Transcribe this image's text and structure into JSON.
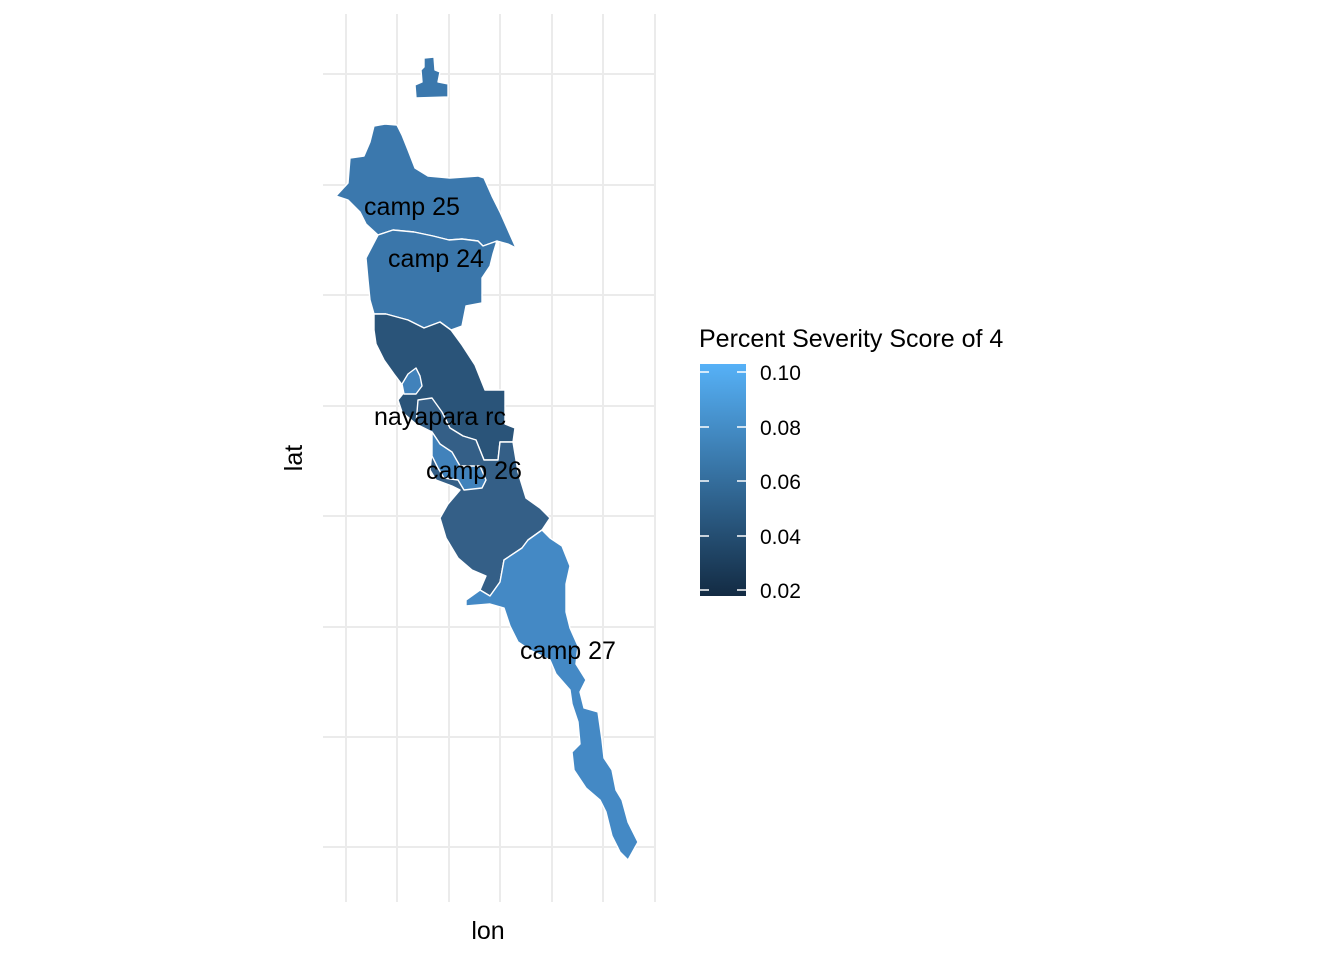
{
  "x_axis_title": "lon",
  "y_axis_title": "lat",
  "legend": {
    "title": "Percent Severity Score of 4",
    "ticks": [
      "0.10",
      "0.08",
      "0.06",
      "0.04",
      "0.02"
    ],
    "colors": {
      "low": "#132B43",
      "high": "#56B1F7"
    }
  },
  "labels": {
    "camp25": "camp 25",
    "camp24": "camp 24",
    "nayapara": "nayapara rc",
    "camp26": "camp 26",
    "camp27": "camp 27"
  },
  "fills": {
    "camp25": "#3b78ad",
    "camp24": "#3a76aa",
    "nayapara": "#2a5479",
    "inner": "#4182bb",
    "camp26": "#345f87",
    "camp27": "#4489c5"
  }
}
